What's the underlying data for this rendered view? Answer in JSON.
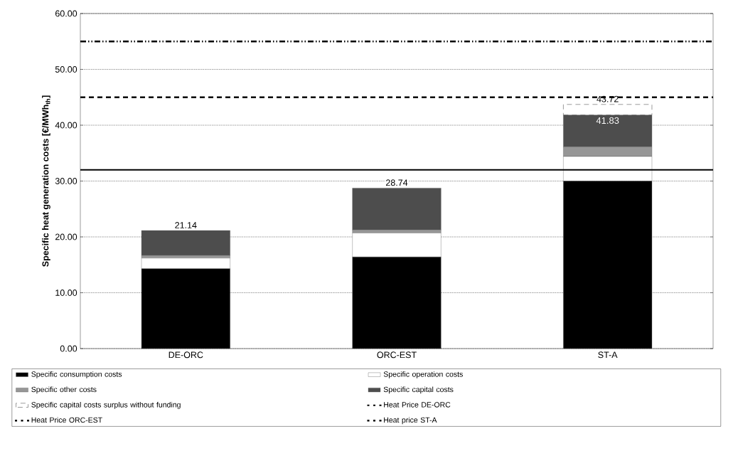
{
  "chart_data": {
    "type": "bar",
    "stacked": true,
    "ylabel": "Specific heat generation costs [€/MWh$_{th}$]",
    "categories": [
      "DE-ORC",
      "ORC-EST",
      "ST-A"
    ],
    "series": [
      {
        "name": "Specific consumption costs",
        "color": "#000000",
        "values": [
          14.3,
          16.4,
          30.0
        ]
      },
      {
        "name": "Specific operation costs",
        "color": "#ffffff",
        "values": [
          1.9,
          4.3,
          4.4
        ]
      },
      {
        "name": "Specific other costs",
        "color": "#969696",
        "values": [
          0.5,
          0.55,
          1.7
        ]
      },
      {
        "name": "Specific capital costs",
        "color": "#4d4d4d",
        "values": [
          4.44,
          7.49,
          5.73
        ]
      },
      {
        "name": "Specific capital costs surplus without funding",
        "color": "#ffffff",
        "line_style": "dashed",
        "values": [
          null,
          null,
          1.89
        ]
      }
    ],
    "ref_lines": [
      {
        "axis": "y",
        "value": 32,
        "label": "Heat Price DE-ORC",
        "color": "#000000",
        "line_style": "solid"
      },
      {
        "axis": "y",
        "value": 45,
        "label": "Heat Price ORC-EST",
        "color": "#000000",
        "line_style": "dashed"
      },
      {
        "axis": "y",
        "value": 55,
        "label": "Heat price ST-A",
        "color": "#000000",
        "line_style": "dashdotdotted"
      }
    ],
    "totals": [
      "21.14",
      "28.74",
      "43.72"
    ],
    "annotations": [
      {
        "text": "41.83",
        "x": "ST-A",
        "y": 41.83
      }
    ],
    "ylim": [
      0,
      60
    ],
    "yticks": [
      {
        "value": 0,
        "label": "0.00"
      },
      {
        "value": 10,
        "label": "10.00"
      },
      {
        "value": 20,
        "label": "20.00"
      },
      {
        "value": 30,
        "label": "30.00"
      },
      {
        "value": 40,
        "label": "40.00"
      },
      {
        "value": 50,
        "label": "50.00"
      },
      {
        "value": 60,
        "label": "60.00"
      }
    ],
    "grid": "y",
    "legend": "bottom"
  }
}
